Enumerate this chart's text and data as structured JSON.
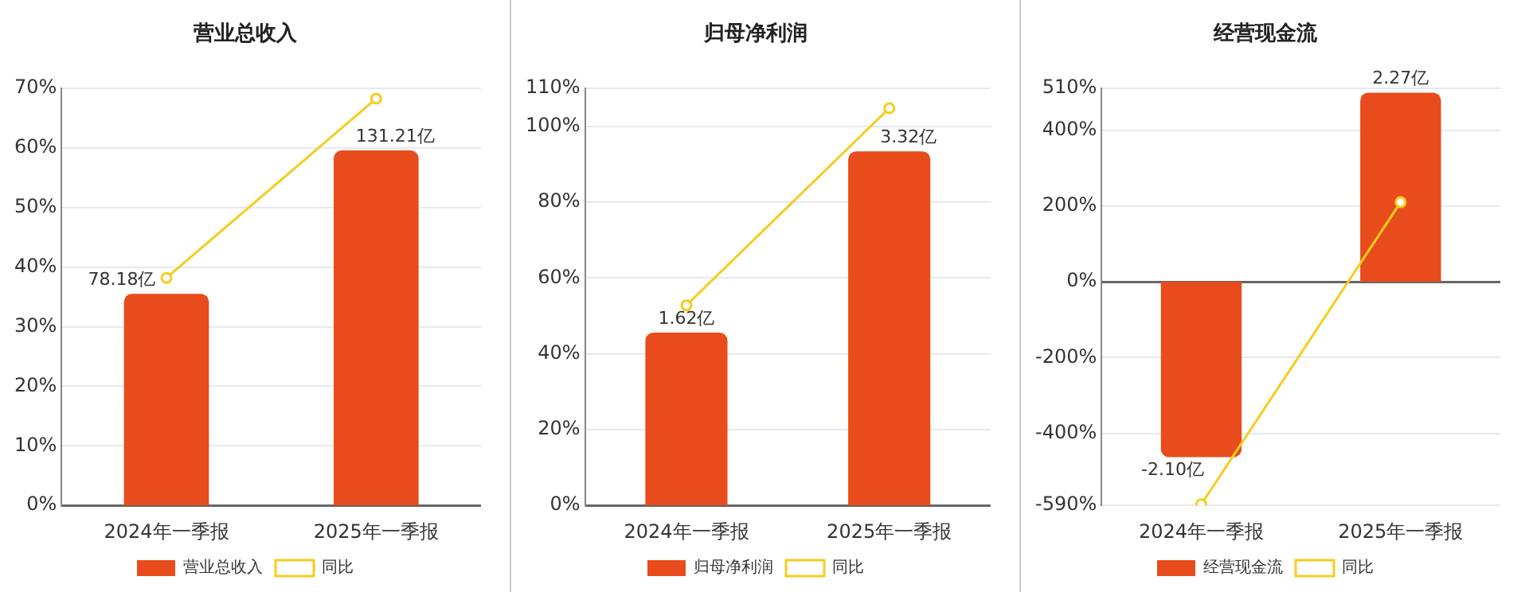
{
  "chart_data": [
    {
      "type": "bar",
      "title": "营业总收入",
      "categories": [
        "2024年一季报",
        "2025年一季报"
      ],
      "series": [
        {
          "name": "营业总收入",
          "axis": "y2",
          "color": "#e84c1c",
          "values": [
            78.18,
            131.21
          ],
          "value_labels": [
            "78.18亿",
            "131.21亿"
          ]
        },
        {
          "name": "同比",
          "type": "line",
          "color": "#f5cd1e",
          "values": [
            38.2,
            68.3
          ]
        }
      ],
      "ylim": [
        0,
        70
      ],
      "yticks": [
        {
          "value": 0,
          "label": "0%"
        },
        {
          "value": 10,
          "label": "10%"
        },
        {
          "value": 20,
          "label": "20%"
        },
        {
          "value": 30,
          "label": "30%"
        },
        {
          "value": 40,
          "label": "40%"
        },
        {
          "value": 50,
          "label": "50%"
        },
        {
          "value": 60,
          "label": "60%"
        },
        {
          "value": 70,
          "label": "70%"
        }
      ],
      "y2lim": [
        0,
        154.1
      ],
      "grid": "y",
      "legend": "bottom",
      "marker": "circle"
    },
    {
      "type": "bar",
      "title": "归母净利润",
      "categories": [
        "2024年一季报",
        "2025年一季报"
      ],
      "series": [
        {
          "name": "归母净利润",
          "axis": "y2",
          "color": "#e84c1c",
          "values": [
            1.62,
            3.32
          ],
          "value_labels": [
            "1.62亿",
            "3.32亿"
          ]
        },
        {
          "name": "同比",
          "type": "line",
          "color": "#f5cd1e",
          "values": [
            52.8,
            104.8
          ]
        }
      ],
      "ylim": [
        0,
        110
      ],
      "yticks": [
        {
          "value": 0,
          "label": "0%"
        },
        {
          "value": 20,
          "label": "20%"
        },
        {
          "value": 40,
          "label": "40%"
        },
        {
          "value": 60,
          "label": "60%"
        },
        {
          "value": 80,
          "label": "80%"
        },
        {
          "value": 100,
          "label": "100%"
        },
        {
          "value": 110,
          "label": "110%"
        }
      ],
      "y2lim": [
        0,
        3.91
      ],
      "grid": "y",
      "legend": "bottom",
      "marker": "circle"
    },
    {
      "type": "bar",
      "title": "经营现金流",
      "categories": [
        "2024年一季报",
        "2025年一季报"
      ],
      "series": [
        {
          "name": "经营现金流",
          "axis": "y2",
          "color": "#e84c1c",
          "values": [
            -2.1,
            2.27
          ],
          "value_labels": [
            "-2.10亿",
            "2.27亿"
          ]
        },
        {
          "name": "同比",
          "type": "line",
          "color": "#f5cd1e",
          "values": [
            -587,
            210
          ]
        }
      ],
      "ylim": [
        -590,
        510
      ],
      "yticks": [
        {
          "value": -590,
          "label": "-590%"
        },
        {
          "value": -400,
          "label": "-400%"
        },
        {
          "value": -200,
          "label": "-200%"
        },
        {
          "value": 0,
          "label": "0%"
        },
        {
          "value": 200,
          "label": "200%"
        },
        {
          "value": 400,
          "label": "400%"
        },
        {
          "value": 510,
          "label": "510%"
        }
      ],
      "y2lim": [
        -2.68,
        2.32
      ],
      "grid": "y",
      "legend": "bottom",
      "marker": "circle"
    }
  ]
}
